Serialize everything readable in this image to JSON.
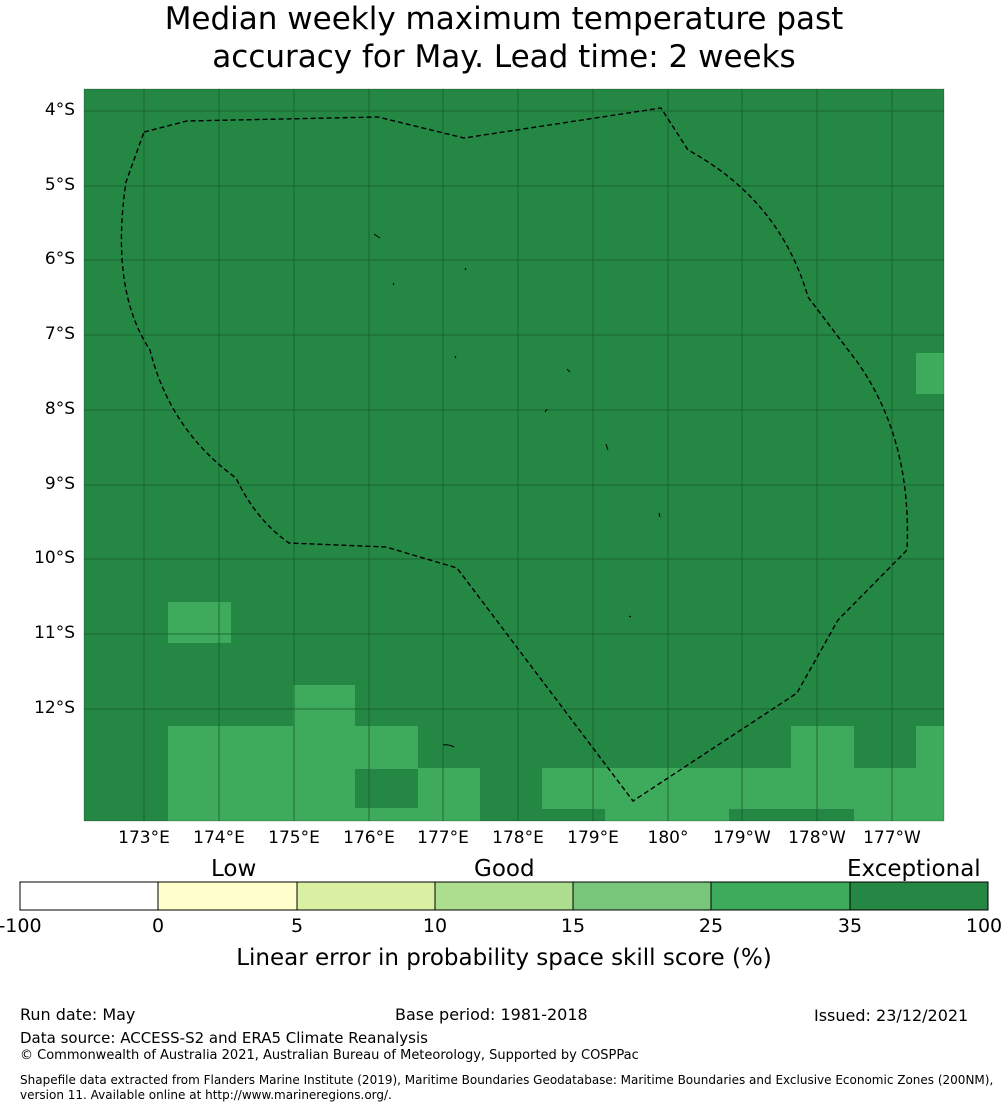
{
  "title": {
    "line1": "Median weekly maximum temperature past",
    "line2": "accuracy for May. Lead time: 2 weeks"
  },
  "map": {
    "lon_range": [
      172.2,
      183.7
    ],
    "lat_range": [
      -13.5,
      -3.75
    ],
    "background_color": "#248844",
    "good_color": "#3eab5c",
    "eez_border_style": "dashed",
    "lat_ticks": [
      "4°S",
      "5°S",
      "6°S",
      "7°S",
      "8°S",
      "9°S",
      "10°S",
      "11°S",
      "12°S"
    ],
    "lon_ticks": [
      "173°E",
      "174°E",
      "175°E",
      "176°E",
      "177°E",
      "178°E",
      "179°E",
      "180°",
      "179°W",
      "178°W",
      "177°W"
    ]
  },
  "colorbar": {
    "categories": [
      "Low",
      "Good",
      "Exceptional"
    ],
    "ticks": [
      "-100",
      "0",
      "5",
      "10",
      "15",
      "25",
      "35",
      "100"
    ],
    "colors": [
      "#ffffff",
      "#ffffcc",
      "#d9f0a3",
      "#addd8e",
      "#78c679",
      "#3eab5c",
      "#248844"
    ],
    "label": "Linear error in probability space skill score (%)"
  },
  "footer": {
    "run_date": "Run date: May",
    "base_period": "Base period: 1981-2018",
    "issued": "Issued: 23/12/2021",
    "data_source": "Data source: ACCESS-S2 and ERA5 Climate Reanalysis",
    "copyright": "© Commonwealth of Australia 2021, Australian Bureau of Meteorology, Supported by COSPPac",
    "shapefile_line1": "Shapefile data extracted from Flanders Marine Institute (2019), Maritime Boundaries Geodatabase: Maritime Boundaries and Exclusive Economic Zones (200NM),",
    "shapefile_line2": "version 11. Available online at http://www.marineregions.org/."
  }
}
